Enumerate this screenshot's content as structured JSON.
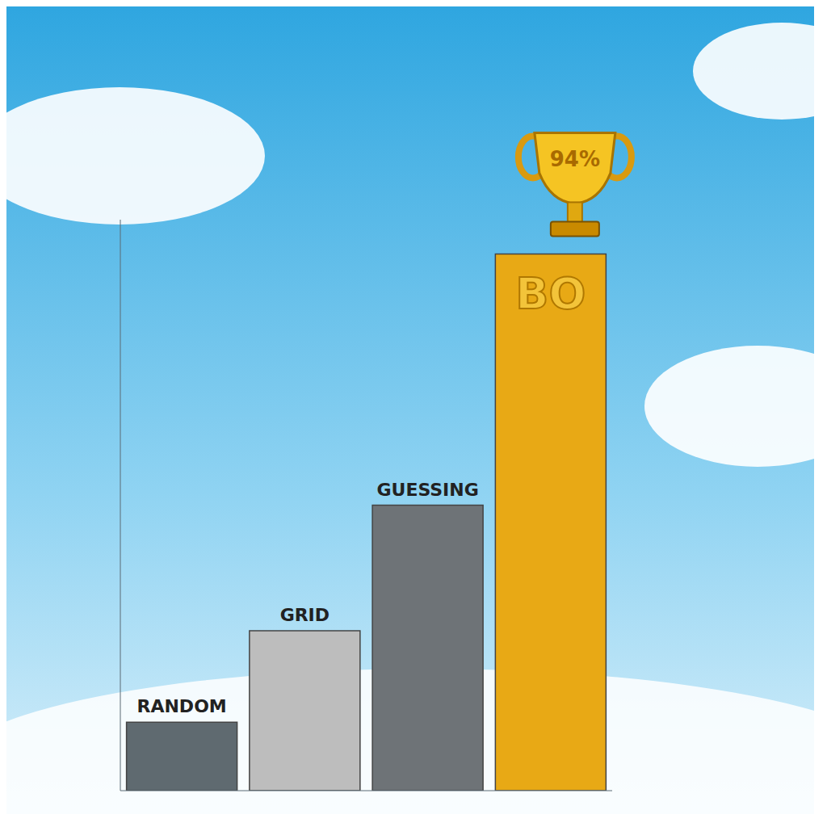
{
  "chart_data": {
    "type": "bar",
    "categories": [
      "RANDOM",
      "GRID",
      "GUESSING",
      "BO"
    ],
    "values": [
      12,
      28,
      50,
      94
    ],
    "colors": [
      "#5f6a70",
      "#bdbdbd",
      "#6e7377",
      "#e8a915"
    ],
    "ylim": [
      0,
      100
    ],
    "yticks": [],
    "tick_labels": false,
    "grid": false,
    "annotation": "94%"
  }
}
